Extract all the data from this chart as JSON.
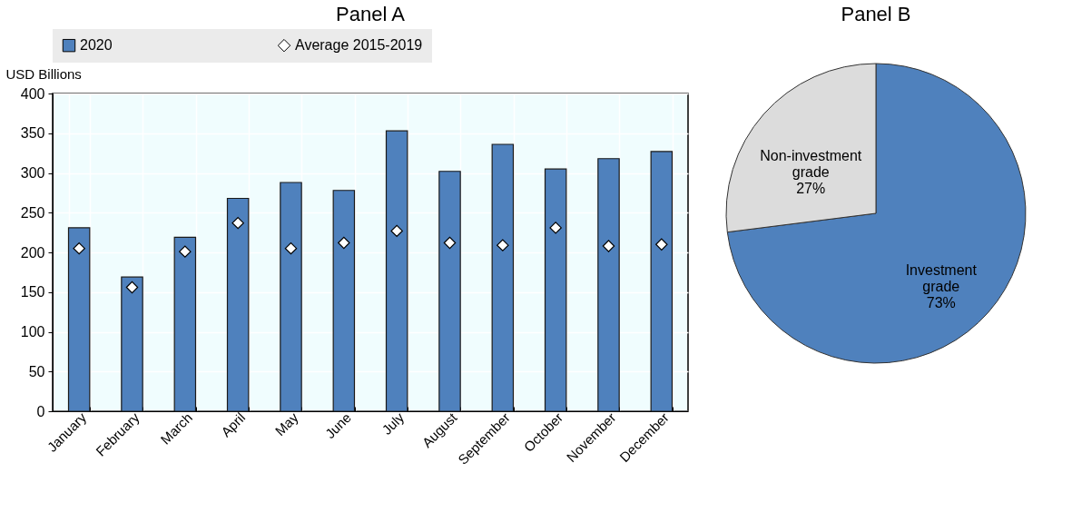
{
  "chart_data": [
    {
      "type": "bar",
      "title": "Panel A",
      "ylabel": "USD Billions",
      "categories": [
        "January",
        "February",
        "March",
        "April",
        "May",
        "June",
        "July",
        "August",
        "September",
        "October",
        "November",
        "December"
      ],
      "series": [
        {
          "name": "2020",
          "type": "bar",
          "color": "#4f81bd",
          "values": [
            231,
            169,
            219,
            268,
            288,
            278,
            353,
            302,
            336,
            305,
            318,
            327
          ]
        },
        {
          "name": "Average 2015-2019",
          "type": "scatter",
          "marker": "diamond",
          "color": "#ffffff",
          "values": [
            205,
            156,
            201,
            237,
            205,
            212,
            227,
            212,
            209,
            231,
            208,
            210
          ]
        }
      ],
      "ylim": [
        0,
        400
      ],
      "yticks": [
        0,
        50,
        100,
        150,
        200,
        250,
        300,
        350,
        400
      ],
      "grid": true,
      "legend": "top"
    },
    {
      "type": "pie",
      "title": "Panel B",
      "categories": [
        "Investment grade",
        "Non-investment grade"
      ],
      "values": [
        73,
        27
      ],
      "colors": [
        "#4f81bd",
        "#dcdcdc"
      ],
      "value_labels": [
        "73%",
        "27%"
      ]
    }
  ]
}
